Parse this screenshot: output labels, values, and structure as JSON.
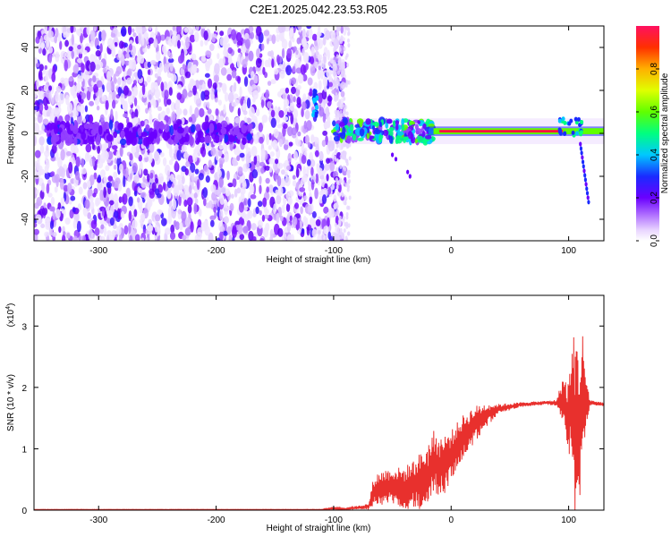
{
  "title": "C2E1.2025.042.23.53.R05",
  "chart_data": [
    {
      "type": "heatmap",
      "name": "spectrogram",
      "xlabel": "Height of straight line (km)",
      "ylabel": "Frequency (Hz)",
      "xlim": [
        -355,
        130
      ],
      "ylim": [
        -50,
        50
      ],
      "xticks": [
        -300,
        -200,
        -100,
        0,
        100
      ],
      "yticks": [
        -40,
        -20,
        0,
        20,
        40
      ],
      "colorbar": {
        "label": "Normalized spectral amplitude",
        "range": [
          0,
          1
        ],
        "ticks": [
          0.0,
          0.2,
          0.4,
          0.6,
          0.8
        ]
      },
      "features": {
        "noise_region_x": [
          -355,
          -90
        ],
        "signal_line_freq": 1,
        "signal_start_x": -100,
        "secondary_streak": {
          "x": [
            110,
            117
          ],
          "freq": [
            -5,
            -32
          ]
        }
      }
    },
    {
      "type": "line",
      "name": "snr",
      "xlabel": "Height of straight line (km)",
      "ylabel": "SNR (10 * v/v)",
      "scale_label": "(x10",
      "scale_exponent": "4",
      "xlim": [
        -355,
        130
      ],
      "ylim": [
        0,
        3.5
      ],
      "xticks": [
        -300,
        -200,
        -100,
        0,
        100
      ],
      "yticks": [
        0,
        1,
        2,
        3
      ],
      "color": "#e8302d",
      "envelope": {
        "x": [
          -355,
          -110,
          -100,
          -90,
          -70,
          -66,
          -60,
          -50,
          -40,
          -30,
          -20,
          -15,
          -10,
          -5,
          0,
          10,
          20,
          30,
          40,
          60,
          80,
          90,
          95,
          100,
          103,
          105,
          107,
          110,
          112,
          115,
          118,
          120,
          130
        ],
        "mid": [
          0.01,
          0.01,
          0.03,
          0.02,
          0.06,
          0.3,
          0.35,
          0.4,
          0.35,
          0.45,
          0.5,
          0.8,
          0.7,
          0.75,
          0.9,
          1.2,
          1.4,
          1.55,
          1.65,
          1.72,
          1.75,
          1.75,
          1.8,
          1.5,
          1.8,
          1.4,
          1.3,
          1.4,
          2.0,
          1.7,
          1.75,
          1.75,
          1.72
        ],
        "amp": [
          0.003,
          0.003,
          0.02,
          0.01,
          0.05,
          0.25,
          0.3,
          0.3,
          0.35,
          0.4,
          0.6,
          0.5,
          0.5,
          0.5,
          0.4,
          0.35,
          0.3,
          0.2,
          0.08,
          0.04,
          0.03,
          0.05,
          0.4,
          0.6,
          1.0,
          1.5,
          1.5,
          1.2,
          0.9,
          0.5,
          0.06,
          0.04,
          0.03
        ]
      }
    }
  ]
}
